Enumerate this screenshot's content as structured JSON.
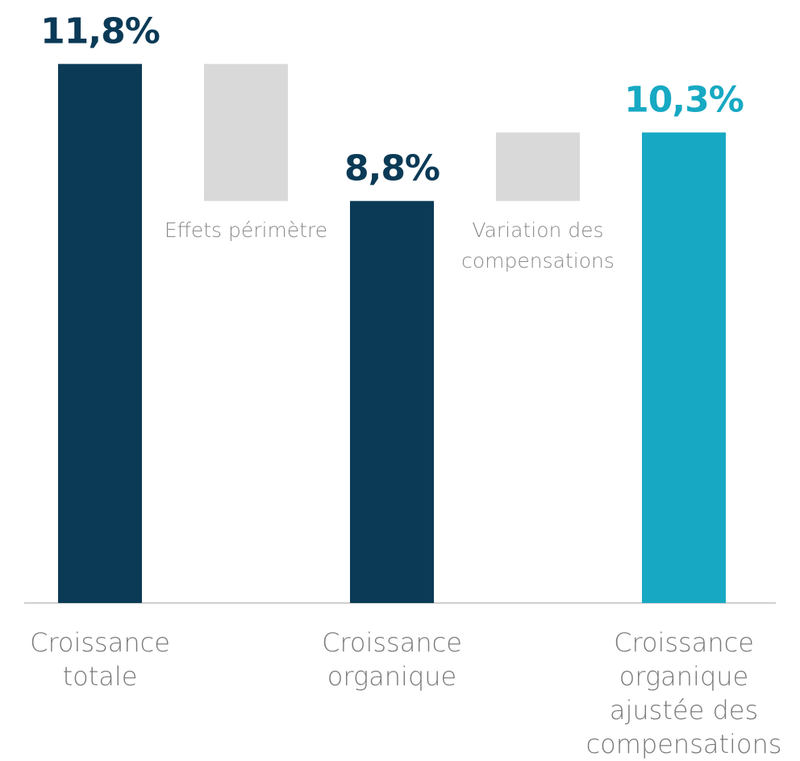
{
  "chart_data": {
    "type": "waterfall",
    "categories": [
      "Croissance totale",
      "Effets périmètre",
      "Croissance organique",
      "Variation des compensations",
      "Croissance organique ajustée des compensations"
    ],
    "measure": [
      "total",
      "relative",
      "total",
      "relative",
      "total"
    ],
    "values": [
      11.8,
      -3.0,
      8.8,
      1.5,
      10.3
    ],
    "value_labels": [
      "11,8%",
      null,
      "8,8%",
      null,
      "10,3%"
    ],
    "colors": [
      "#0b3a56",
      "#d9d9d9",
      "#0b3a56",
      "#d9d9d9",
      "#17a9c3"
    ],
    "ylim": [
      0,
      12
    ]
  }
}
